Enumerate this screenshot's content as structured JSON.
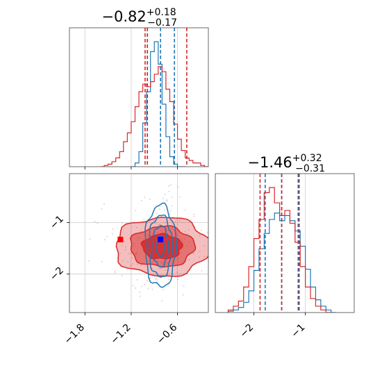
{
  "chart_data": [
    {
      "type": "histogram",
      "panel": "marginal-param-1",
      "title": {
        "value": "−0.82",
        "plus": "+0.18",
        "minus": "−0.17"
      },
      "xlim": [
        -2.0,
        -0.2
      ],
      "grid": true,
      "series": [
        {
          "name": "",
          "color": "#1f77b4",
          "bin_edges": [
            -1.2,
            -1.15,
            -1.1,
            -1.05,
            -1.0,
            -0.95,
            -0.9,
            -0.85,
            -0.8,
            -0.75,
            -0.7,
            -0.65,
            -0.6,
            -0.55,
            -0.5
          ],
          "counts": [
            0,
            0.03,
            0.12,
            0.35,
            0.6,
            0.92,
            1.0,
            0.82,
            0.5,
            0.24,
            0.08,
            0.02,
            0,
            0
          ],
          "quantiles": [
            -0.99,
            -0.82,
            -0.64
          ]
        },
        {
          "name": "",
          "color": "#d62728",
          "bin_edges": [
            -1.6,
            -1.55,
            -1.5,
            -1.45,
            -1.4,
            -1.35,
            -1.3,
            -1.25,
            -1.2,
            -1.15,
            -1.1,
            -1.05,
            -1.0,
            -0.95,
            -0.9,
            -0.85,
            -0.8,
            -0.75,
            -0.7,
            -0.65,
            -0.6,
            -0.55,
            -0.5,
            -0.45,
            -0.4,
            -0.35,
            -0.3,
            -0.25,
            -0.2
          ],
          "counts": [
            0,
            0.01,
            0.02,
            0.04,
            0.07,
            0.12,
            0.2,
            0.27,
            0.36,
            0.48,
            0.6,
            0.66,
            0.64,
            0.68,
            0.74,
            0.8,
            0.76,
            0.62,
            0.52,
            0.34,
            0.22,
            0.13,
            0.07,
            0.05,
            0.03,
            0.03,
            0.01,
            0
          ],
          "quantiles": [
            -1.02,
            -0.99,
            -0.48
          ]
        }
      ]
    },
    {
      "type": "contour",
      "panel": "joint-param-1-param-2",
      "xlim": [
        -2.0,
        -0.2
      ],
      "ylim": [
        -2.75,
        -0.05
      ],
      "xticks": [
        "−1.8",
        "−1.2",
        "−0.6"
      ],
      "yticks": [
        "−1",
        "−2"
      ],
      "grid": true,
      "series": [
        {
          "name": "",
          "color": "#1f77b4",
          "center": [
            -0.82,
            -1.46
          ],
          "sigma": [
            0.1,
            0.4
          ],
          "levels": [
            0.5,
            1.0,
            1.5,
            2.0
          ]
        },
        {
          "name": "",
          "color": "#d62728",
          "center": [
            -0.8,
            -1.47
          ],
          "sigma": [
            0.32,
            0.3
          ],
          "levels": [
            0.8,
            1.3,
            1.9
          ]
        }
      ],
      "markers": [
        {
          "x": -1.34,
          "y": -1.33,
          "color": "#ff0000"
        },
        {
          "x": -0.82,
          "y": -1.33,
          "color": "#0000ff"
        }
      ]
    },
    {
      "type": "histogram",
      "panel": "marginal-param-2",
      "title": {
        "value": "−1.46",
        "plus": "+0.32",
        "minus": "−0.31"
      },
      "xlim": [
        -2.75,
        -0.05
      ],
      "xticks": [
        "−2",
        "−1"
      ],
      "grid": true,
      "series": [
        {
          "name": "",
          "color": "#1f77b4",
          "bin_edges": [
            -2.5,
            -2.4,
            -2.3,
            -2.2,
            -2.1,
            -2.0,
            -1.9,
            -1.8,
            -1.7,
            -1.6,
            -1.5,
            -1.4,
            -1.3,
            -1.2,
            -1.1,
            -1.0,
            -0.9,
            -0.8,
            -0.7,
            -0.6,
            -0.5,
            -0.4
          ],
          "counts": [
            0.01,
            0.02,
            0.04,
            0.08,
            0.17,
            0.33,
            0.5,
            0.62,
            0.73,
            0.78,
            0.72,
            0.76,
            0.72,
            0.64,
            0.52,
            0.34,
            0.2,
            0.1,
            0.05,
            0.02,
            0
          ],
          "quantiles": [
            -1.78,
            -1.46,
            -1.14
          ]
        },
        {
          "name": "",
          "color": "#d62728",
          "bin_edges": [
            -2.5,
            -2.4,
            -2.3,
            -2.2,
            -2.1,
            -2.0,
            -1.9,
            -1.8,
            -1.7,
            -1.6,
            -1.5,
            -1.4,
            -1.3,
            -1.2,
            -1.1,
            -1.0,
            -0.9,
            -0.8,
            -0.7,
            -0.6,
            -0.5
          ],
          "counts": [
            0.02,
            0.05,
            0.09,
            0.2,
            0.36,
            0.58,
            0.73,
            0.94,
            0.98,
            0.86,
            0.76,
            0.8,
            0.7,
            0.55,
            0.36,
            0.2,
            0.11,
            0.05,
            0.02,
            0
          ],
          "quantiles": [
            -1.88,
            -1.46,
            -1.12
          ]
        }
      ]
    }
  ]
}
